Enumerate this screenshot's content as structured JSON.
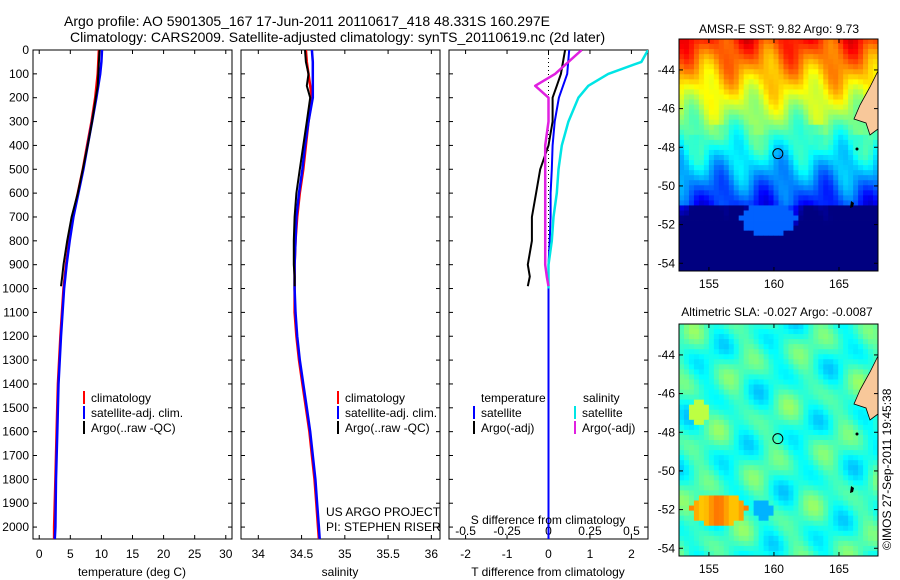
{
  "title_line1": "Argo profile: AO 5901305_167 17-Jun-2011 20110617_418 48.331S 160.297E",
  "title_line2": "Climatology: CARS2009. Satellite-adjusted climatology: synTS_20110619.nc (2d later)",
  "credit": "US ARGO PROJECT",
  "pi": "PI: STEPHEN RISER",
  "watermark": "©IMOS 27-Sep-2011 19:45:38",
  "colors": {
    "climatology": "#ff0000",
    "satellite": "#0000ff",
    "argo": "#000000",
    "satellite_salinity": "#00e5e5",
    "argo_salinity": "#e020e0"
  },
  "chart_data": [
    {
      "type": "line",
      "name": "temperature-profile",
      "xlabel": "temperature (deg C)",
      "xlim": [
        -1,
        31
      ],
      "xticks": [
        0,
        5,
        10,
        15,
        20,
        25,
        30
      ],
      "ylim": [
        2050,
        0
      ],
      "yticks": [
        0,
        100,
        200,
        300,
        400,
        500,
        600,
        700,
        800,
        900,
        1000,
        1100,
        1200,
        1300,
        1400,
        1500,
        1600,
        1700,
        1800,
        1900,
        2000
      ],
      "legend": [
        "climatology",
        "satellite-adj. clim.",
        "Argo(..raw -QC)"
      ],
      "series": [
        {
          "name": "climatology",
          "depth": [
            0,
            50,
            100,
            200,
            300,
            400,
            500,
            600,
            700,
            800,
            900,
            1000,
            1200,
            1400,
            1600,
            1800,
            2000,
            2050
          ],
          "values": [
            9.6,
            9.5,
            9.4,
            9.0,
            8.4,
            7.7,
            7.0,
            6.2,
            5.4,
            4.8,
            4.3,
            3.9,
            3.4,
            3.0,
            2.8,
            2.6,
            2.4,
            2.4
          ]
        },
        {
          "name": "satellite",
          "depth": [
            0,
            50,
            100,
            200,
            300,
            400,
            500,
            600,
            700,
            800,
            900,
            1000,
            1200,
            1400,
            1600,
            1800,
            2000,
            2050
          ],
          "values": [
            10.1,
            10.0,
            9.8,
            9.2,
            8.5,
            7.8,
            7.1,
            6.3,
            5.5,
            4.9,
            4.4,
            4.0,
            3.5,
            3.1,
            2.9,
            2.7,
            2.6,
            2.5
          ]
        },
        {
          "name": "argo",
          "depth": [
            0,
            50,
            100,
            150,
            200,
            300,
            400,
            500,
            600,
            700,
            800,
            900,
            950,
            990
          ],
          "values": [
            9.7,
            9.6,
            9.5,
            9.4,
            9.1,
            8.5,
            7.8,
            7.0,
            6.2,
            5.2,
            4.5,
            3.9,
            3.7,
            3.5
          ]
        }
      ]
    },
    {
      "type": "line",
      "name": "salinity-profile",
      "xlabel": "salinity",
      "xlim": [
        33.8,
        36.1
      ],
      "xticks": [
        34,
        34.5,
        35,
        35.5,
        36
      ],
      "xticklabels": [
        "34",
        "34.5",
        "35",
        "35.5",
        "36"
      ],
      "ylim": [
        2050,
        0
      ],
      "legend": [
        "climatology",
        "satellite-adj. clim.",
        "Argo(..raw -QC)"
      ],
      "series": [
        {
          "name": "climatology",
          "depth": [
            0,
            50,
            100,
            200,
            300,
            400,
            500,
            600,
            700,
            800,
            900,
            1000,
            1100,
            1200,
            1300,
            1400,
            1500,
            1600,
            1700,
            1800,
            1900,
            2000,
            2050
          ],
          "values": [
            34.55,
            34.56,
            34.58,
            34.62,
            34.58,
            34.55,
            34.52,
            34.48,
            34.45,
            34.43,
            34.42,
            34.42,
            34.42,
            34.44,
            34.47,
            34.51,
            34.55,
            34.59,
            34.62,
            34.65,
            34.67,
            34.69,
            34.7
          ]
        },
        {
          "name": "satellite",
          "depth": [
            0,
            50,
            100,
            200,
            300,
            400,
            500,
            600,
            700,
            800,
            900,
            1000,
            1100,
            1200,
            1300,
            1400,
            1500,
            1600,
            1700,
            1800,
            1900,
            2000,
            2050
          ],
          "values": [
            34.62,
            34.63,
            34.63,
            34.63,
            34.58,
            34.54,
            34.51,
            34.47,
            34.44,
            34.43,
            34.42,
            34.42,
            34.43,
            34.45,
            34.48,
            34.52,
            34.56,
            34.6,
            34.63,
            34.66,
            34.68,
            34.7,
            34.71
          ]
        },
        {
          "name": "argo",
          "depth": [
            0,
            50,
            100,
            150,
            200,
            300,
            400,
            500,
            600,
            700,
            800,
            900,
            950,
            990
          ],
          "values": [
            34.54,
            34.55,
            34.58,
            34.56,
            34.6,
            34.56,
            34.52,
            34.48,
            34.44,
            34.42,
            34.41,
            34.41,
            34.42,
            34.42
          ]
        }
      ]
    },
    {
      "type": "line",
      "name": "difference-profile",
      "xlabel": "T difference from climatology",
      "xlim": [
        -2.4,
        2.4
      ],
      "xticks": [
        -2,
        -1,
        0,
        1,
        2
      ],
      "top_label": "S difference from climatology",
      "top_ticks": [
        -0.5,
        -0.25,
        0,
        0.25,
        0.5
      ],
      "top_ticklabels": [
        "-0.5",
        "-0.25",
        "0",
        "0.25",
        "0.5"
      ],
      "ylim": [
        2050,
        0
      ],
      "legend_headers": [
        "temperature",
        "salinity"
      ],
      "legend": [
        "satellite",
        "Argo(-adj)",
        "satellite",
        "Argo(-adj)"
      ],
      "series": [
        {
          "name": "T satellite",
          "depth": [
            0,
            100,
            200,
            300,
            400,
            500,
            600,
            700,
            800,
            900,
            1000,
            1200,
            1500,
            1800,
            2000,
            2050
          ],
          "values": [
            0.5,
            0.45,
            0.25,
            0.15,
            0.1,
            0.08,
            0.05,
            0.05,
            0.03,
            0.0,
            0.0,
            0.0,
            0.0,
            0.0,
            0.0,
            0.0
          ]
        },
        {
          "name": "T argo",
          "depth": [
            0,
            50,
            100,
            150,
            200,
            300,
            400,
            500,
            600,
            700,
            800,
            900,
            950,
            990
          ],
          "values": [
            0.4,
            0.35,
            0.3,
            0.2,
            0.1,
            0.1,
            0.0,
            -0.2,
            -0.3,
            -0.4,
            -0.4,
            -0.5,
            -0.45,
            -0.5
          ]
        },
        {
          "name": "S satellite",
          "depth": [
            0,
            50,
            100,
            150,
            200,
            300,
            400,
            500,
            600,
            700,
            800,
            900,
            1000
          ],
          "values": [
            0.6,
            0.56,
            0.36,
            0.24,
            0.18,
            0.12,
            0.08,
            0.06,
            0.05,
            0.03,
            0.02,
            0.0,
            0.0
          ]
        },
        {
          "name": "S argo",
          "depth": [
            0,
            50,
            100,
            150,
            200,
            300,
            400,
            500,
            600,
            700,
            800,
            900,
            950,
            990
          ],
          "values": [
            0.2,
            0.12,
            0.04,
            -0.08,
            0.0,
            0.0,
            -0.02,
            -0.02,
            -0.02,
            -0.02,
            -0.02,
            -0.02,
            -0.01,
            0.0
          ]
        }
      ]
    },
    {
      "type": "heatmap",
      "name": "sst-map",
      "title": "AMSR-E SST: 9.82 Argo: 9.73",
      "xlim": [
        152.7,
        168
      ],
      "ylim": [
        -54.4,
        -42.4
      ],
      "xticks": [
        155,
        160,
        165
      ],
      "yticks": [
        -44,
        -46,
        -48,
        -50,
        -52,
        -54
      ],
      "marker": {
        "lon": 160.3,
        "lat": -48.33
      }
    },
    {
      "type": "heatmap",
      "name": "sla-map",
      "title": "Altimetric SLA: -0.027 Argo: -0.0087",
      "xlim": [
        152.7,
        168
      ],
      "ylim": [
        -54.4,
        -42.4
      ],
      "xticks": [
        155,
        160,
        165
      ],
      "yticks": [
        -44,
        -46,
        -48,
        -50,
        -52,
        -54
      ],
      "marker": {
        "lon": 160.3,
        "lat": -48.33
      }
    }
  ]
}
